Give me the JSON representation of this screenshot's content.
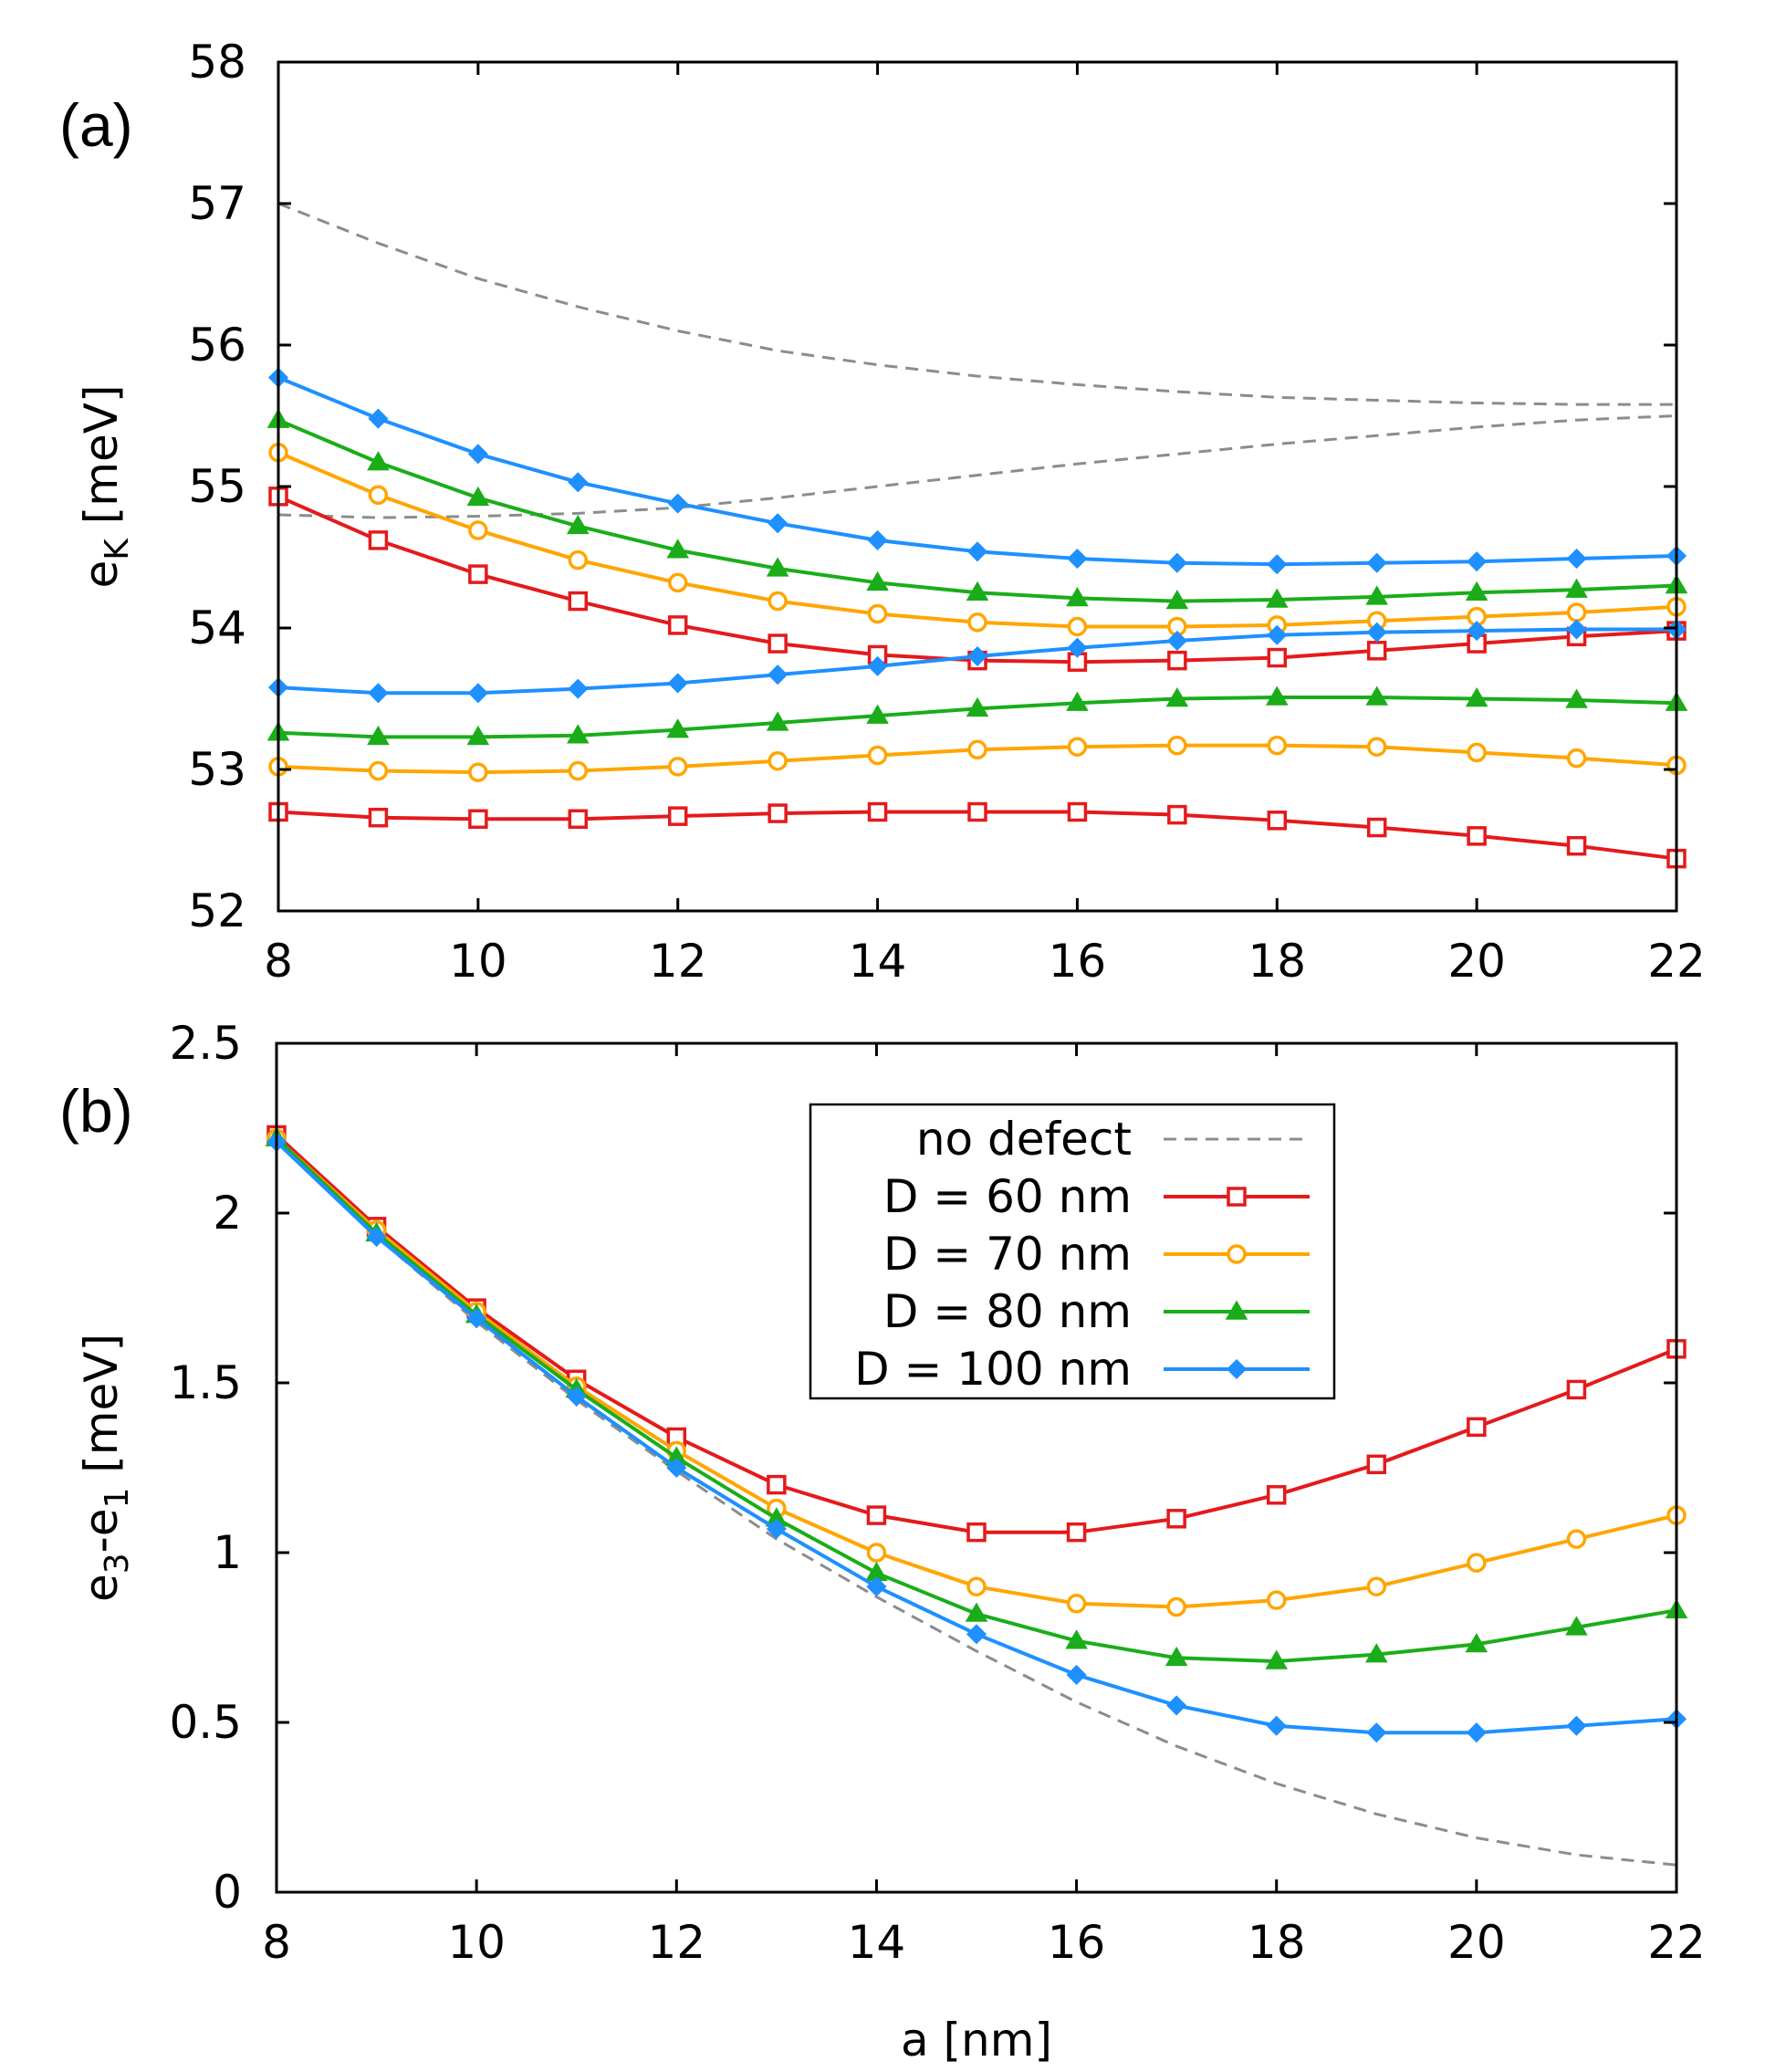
{
  "colors": {
    "no_defect": "#8c8c8c",
    "d60": "#e41a1c",
    "d70": "#ffa500",
    "d80": "#1aad19",
    "d100": "#1e90ff"
  },
  "chart_data": [
    {
      "panel": "(a)",
      "type": "line",
      "xlabel": "",
      "ylabel": "e_K [meV]",
      "ylabel_main": "e",
      "ylabel_sub": "K",
      "ylabel_rest": " [meV]",
      "xlim": [
        8,
        22
      ],
      "ylim": [
        52,
        58
      ],
      "xticks": [
        8,
        10,
        12,
        14,
        16,
        18,
        20,
        22
      ],
      "yticks": [
        52,
        53,
        54,
        55,
        56,
        57,
        58
      ],
      "x": [
        8,
        9,
        10,
        11,
        12,
        13,
        14,
        15,
        16,
        17,
        18,
        19,
        20,
        21,
        22
      ],
      "series": [
        {
          "name": "no defect (upper)",
          "color_key": "no_defect",
          "marker": "none",
          "dashed": true,
          "values": [
            57.0,
            56.72,
            56.47,
            56.27,
            56.1,
            55.96,
            55.86,
            55.78,
            55.72,
            55.67,
            55.63,
            55.61,
            55.59,
            55.58,
            55.58
          ]
        },
        {
          "name": "no defect (lower)",
          "color_key": "no_defect",
          "marker": "none",
          "dashed": true,
          "values": [
            54.8,
            54.78,
            54.79,
            54.81,
            54.85,
            54.92,
            55.0,
            55.08,
            55.16,
            55.23,
            55.3,
            55.36,
            55.42,
            55.47,
            55.5
          ]
        },
        {
          "name": "D = 60 nm (upper)",
          "color_key": "d60",
          "marker": "square",
          "values": [
            54.93,
            54.62,
            54.38,
            54.19,
            54.02,
            53.89,
            53.81,
            53.77,
            53.76,
            53.77,
            53.79,
            53.84,
            53.89,
            53.94,
            53.98
          ]
        },
        {
          "name": "D = 70 nm (upper)",
          "color_key": "d70",
          "marker": "circle",
          "values": [
            55.24,
            54.94,
            54.69,
            54.48,
            54.32,
            54.19,
            54.1,
            54.04,
            54.01,
            54.01,
            54.02,
            54.05,
            54.08,
            54.11,
            54.15
          ]
        },
        {
          "name": "D = 80 nm (upper)",
          "color_key": "d80",
          "marker": "triangle",
          "values": [
            55.47,
            55.17,
            54.92,
            54.72,
            54.55,
            54.42,
            54.32,
            54.25,
            54.21,
            54.19,
            54.2,
            54.22,
            54.25,
            54.27,
            54.3
          ]
        },
        {
          "name": "D = 100 nm (upper)",
          "color_key": "d100",
          "marker": "diamond",
          "values": [
            55.77,
            55.48,
            55.23,
            55.03,
            54.88,
            54.74,
            54.62,
            54.54,
            54.49,
            54.46,
            54.45,
            54.46,
            54.47,
            54.49,
            54.51
          ]
        },
        {
          "name": "D = 100 nm (lower)",
          "color_key": "d100",
          "marker": "diamond",
          "values": [
            53.58,
            53.54,
            53.54,
            53.57,
            53.61,
            53.67,
            53.73,
            53.8,
            53.86,
            53.91,
            53.95,
            53.97,
            53.98,
            53.99,
            53.99
          ]
        },
        {
          "name": "D = 80 nm (lower)",
          "color_key": "d80",
          "marker": "triangle",
          "values": [
            53.26,
            53.23,
            53.23,
            53.24,
            53.28,
            53.33,
            53.38,
            53.43,
            53.47,
            53.5,
            53.51,
            53.51,
            53.5,
            53.49,
            53.47
          ]
        },
        {
          "name": "D = 70 nm (lower)",
          "color_key": "d70",
          "marker": "circle",
          "values": [
            53.02,
            52.99,
            52.98,
            52.99,
            53.02,
            53.06,
            53.1,
            53.14,
            53.16,
            53.17,
            53.17,
            53.16,
            53.12,
            53.08,
            53.03
          ]
        },
        {
          "name": "D = 60 nm (lower)",
          "color_key": "d60",
          "marker": "square",
          "values": [
            52.7,
            52.66,
            52.65,
            52.65,
            52.67,
            52.69,
            52.7,
            52.7,
            52.7,
            52.68,
            52.64,
            52.59,
            52.53,
            52.46,
            52.37
          ]
        }
      ]
    },
    {
      "panel": "(b)",
      "type": "line",
      "xlabel": "a [nm]",
      "ylabel": "e_3-e_1 [meV]",
      "ylabel_a": "e",
      "ylabel_s1": "3",
      "ylabel_b": "-e",
      "ylabel_s2": "1",
      "ylabel_rest": " [meV]",
      "xlim": [
        8,
        22
      ],
      "ylim": [
        0,
        2.5
      ],
      "xticks": [
        8,
        10,
        12,
        14,
        16,
        18,
        20,
        22
      ],
      "yticks": [
        0,
        0.5,
        1,
        1.5,
        2,
        2.5
      ],
      "ytick_labels": [
        "0",
        "0.5",
        "1",
        "1.5",
        "2",
        "2.5"
      ],
      "x": [
        8,
        9,
        10,
        11,
        12,
        13,
        14,
        15,
        16,
        17,
        18,
        19,
        20,
        21,
        22
      ],
      "legend_position": "top-right",
      "series": [
        {
          "name": "no defect",
          "color_key": "no_defect",
          "marker": "none",
          "dashed": true,
          "values": [
            2.22,
            1.93,
            1.68,
            1.45,
            1.24,
            1.04,
            0.87,
            0.71,
            0.56,
            0.43,
            0.32,
            0.23,
            0.16,
            0.11,
            0.08
          ]
        },
        {
          "name": "D = 60 nm",
          "color_key": "d60",
          "marker": "square",
          "values": [
            2.23,
            1.96,
            1.72,
            1.51,
            1.34,
            1.2,
            1.11,
            1.06,
            1.06,
            1.1,
            1.17,
            1.26,
            1.37,
            1.48,
            1.6
          ]
        },
        {
          "name": "D = 70 nm",
          "color_key": "d70",
          "marker": "circle",
          "values": [
            2.22,
            1.95,
            1.71,
            1.49,
            1.3,
            1.13,
            1.0,
            0.9,
            0.85,
            0.84,
            0.86,
            0.9,
            0.97,
            1.04,
            1.11
          ]
        },
        {
          "name": "D = 80 nm",
          "color_key": "d80",
          "marker": "triangle",
          "values": [
            2.22,
            1.94,
            1.7,
            1.48,
            1.28,
            1.1,
            0.94,
            0.82,
            0.74,
            0.69,
            0.68,
            0.7,
            0.73,
            0.78,
            0.83
          ]
        },
        {
          "name": "D = 100 nm",
          "color_key": "d100",
          "marker": "diamond",
          "values": [
            2.21,
            1.93,
            1.69,
            1.46,
            1.25,
            1.07,
            0.9,
            0.76,
            0.64,
            0.55,
            0.49,
            0.47,
            0.47,
            0.49,
            0.51
          ]
        }
      ],
      "legend": [
        {
          "label": "no defect",
          "color_key": "no_defect",
          "marker": "none",
          "dashed": true
        },
        {
          "label": "D = 60 nm",
          "color_key": "d60",
          "marker": "square"
        },
        {
          "label": "D = 70 nm",
          "color_key": "d70",
          "marker": "circle"
        },
        {
          "label": "D = 80 nm",
          "color_key": "d80",
          "marker": "triangle"
        },
        {
          "label": "D = 100 nm",
          "color_key": "d100",
          "marker": "diamond"
        }
      ]
    }
  ]
}
